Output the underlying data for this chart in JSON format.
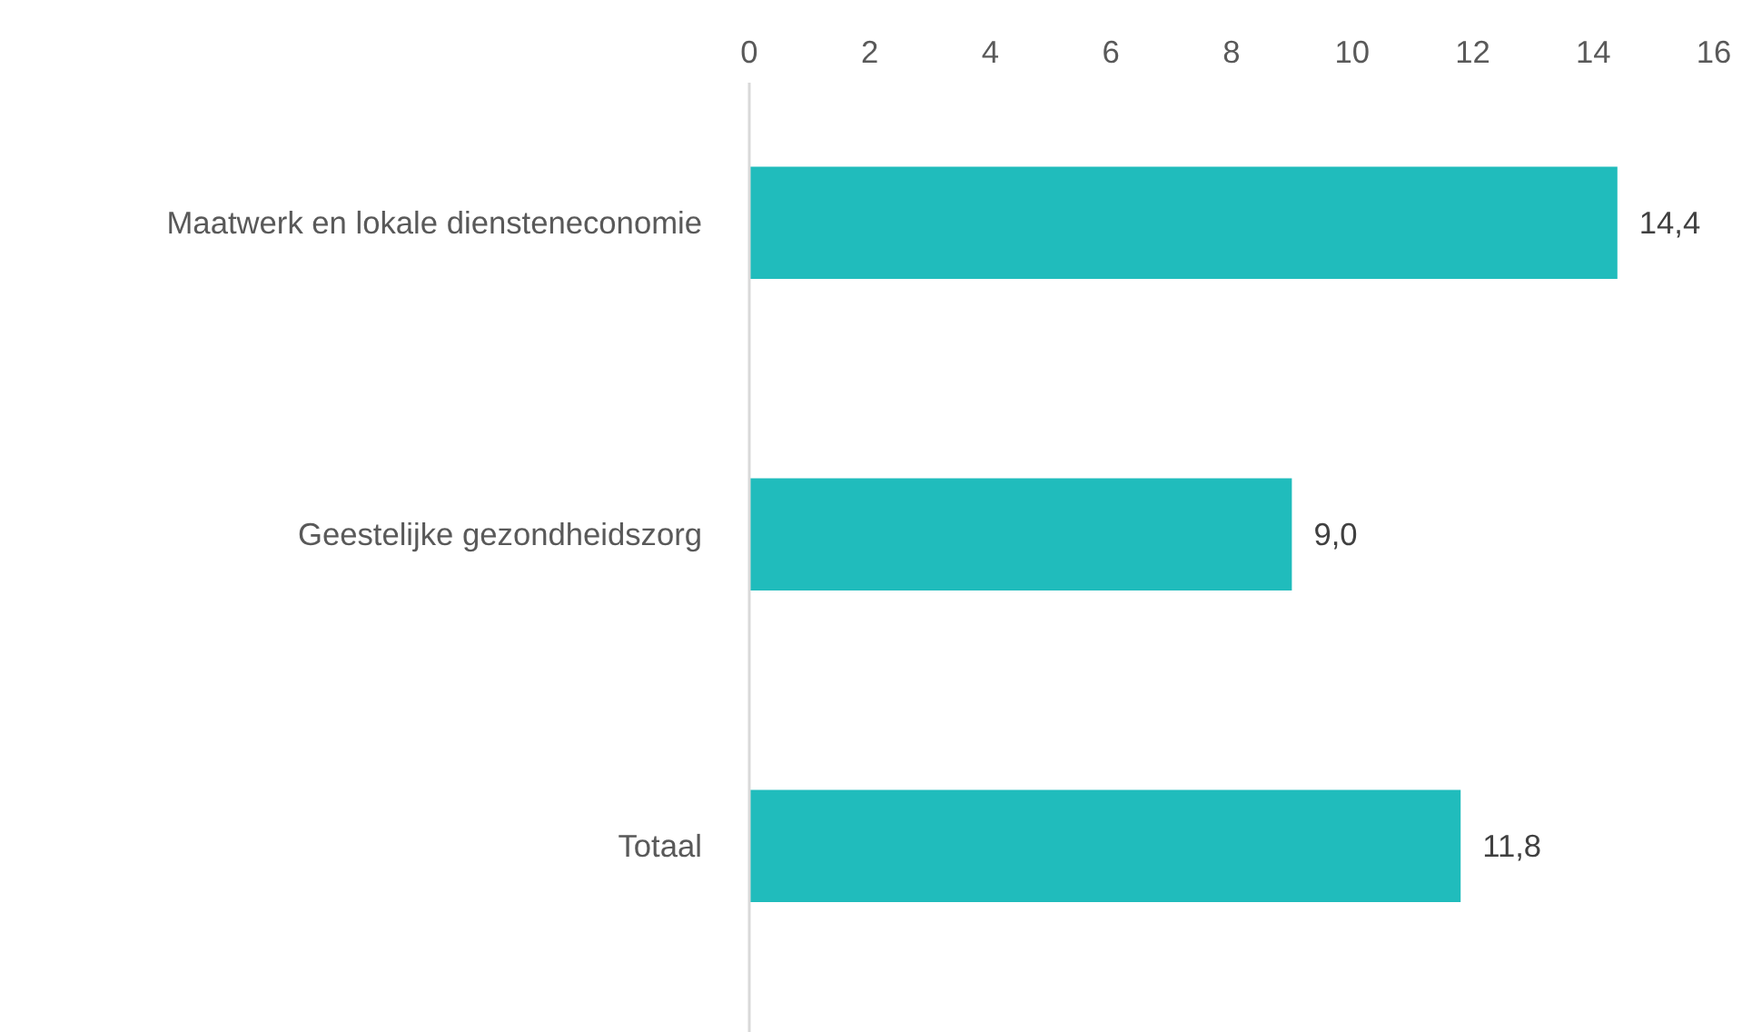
{
  "chart_data": {
    "type": "bar",
    "orientation": "horizontal",
    "categories": [
      "Maatwerk en lokale diensteneconomie",
      "Geestelijke gezondheidszorg",
      "Totaal"
    ],
    "values": [
      14.4,
      9.0,
      11.8
    ],
    "value_labels": [
      "14,4",
      "9,0",
      "11,8"
    ],
    "color": "#20bcbc",
    "xlim": [
      0,
      16
    ],
    "xticks": [
      0,
      2,
      4,
      6,
      8,
      10,
      12,
      14,
      16
    ],
    "grid": false
  }
}
